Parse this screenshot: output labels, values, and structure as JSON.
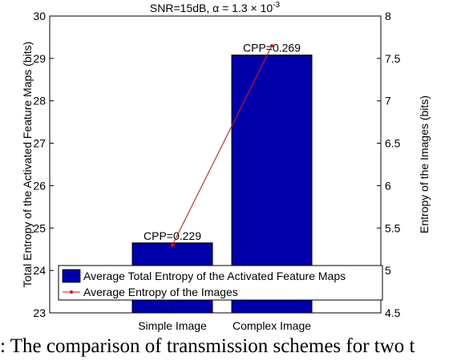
{
  "chart_data": {
    "type": "bar",
    "title": "SNR=15dB, α = 1.3 × 10",
    "title_exp": "-3",
    "categories": [
      "Simple Image",
      "Complex Image"
    ],
    "ylabel_left": "Total Entropy of the Activated Feature Maps (bits)",
    "ylabel_right": "Entropy of the Images (bits)",
    "ylim_left": [
      23,
      30
    ],
    "ylim_right": [
      4.5,
      8
    ],
    "yticks_left": [
      "23",
      "24",
      "25",
      "26",
      "27",
      "28",
      "29",
      "30"
    ],
    "yticks_right": [
      "4.5",
      "5",
      "5.5",
      "6",
      "6.5",
      "7",
      "7.5",
      "8"
    ],
    "series": [
      {
        "name": "Average Total Entropy of the Activated Feature Maps",
        "type": "bar",
        "axis": "left",
        "color": "#0000aa",
        "values": [
          24.65,
          29.08
        ],
        "labels": [
          "CPP=0.229",
          "CPP=0.269"
        ]
      },
      {
        "name": "Average Entropy of the Images",
        "type": "line",
        "axis": "right",
        "color": "#ff0000",
        "values": [
          5.3,
          7.65
        ]
      }
    ],
    "legend_position": "bottom"
  },
  "caption": ": The comparison of transmission schemes for two t"
}
